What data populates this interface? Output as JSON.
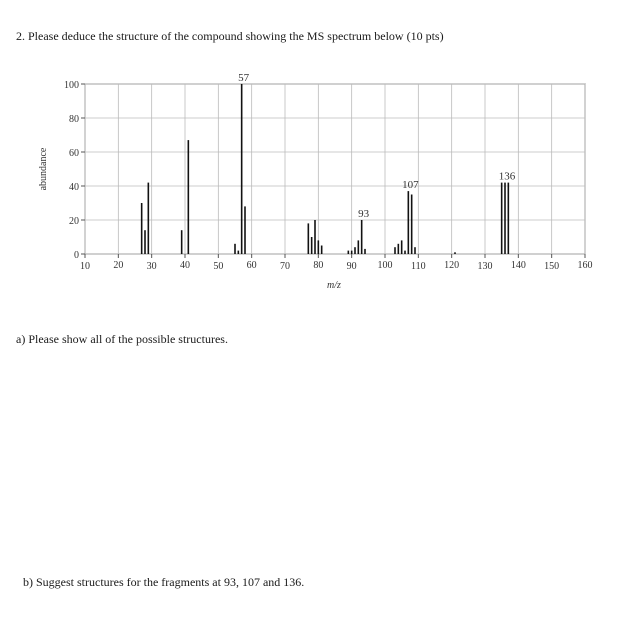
{
  "question": {
    "title": "2. Please deduce the structure of the compound showing the MS spectrum below (10 pts)",
    "part_a": "a) Please show all of the possible structures.",
    "part_b": "b) Suggest structures for the fragments at 93, 107 and 136."
  },
  "chart_data": {
    "type": "bar",
    "xlabel": "m/z",
    "ylabel": "abundance",
    "xlim": [
      10,
      160
    ],
    "ylim": [
      0,
      100
    ],
    "x_ticks": [
      10,
      20,
      30,
      40,
      50,
      60,
      70,
      80,
      90,
      100,
      110,
      120,
      130,
      140,
      150,
      160
    ],
    "y_ticks": [
      0,
      20,
      40,
      60,
      80,
      100
    ],
    "grid": true,
    "peaks": [
      {
        "mz": 27,
        "abundance": 30
      },
      {
        "mz": 28,
        "abundance": 14
      },
      {
        "mz": 29,
        "abundance": 42
      },
      {
        "mz": 39,
        "abundance": 14
      },
      {
        "mz": 41,
        "abundance": 67
      },
      {
        "mz": 55,
        "abundance": 6
      },
      {
        "mz": 56,
        "abundance": 2
      },
      {
        "mz": 57,
        "abundance": 100
      },
      {
        "mz": 58,
        "abundance": 28
      },
      {
        "mz": 77,
        "abundance": 18
      },
      {
        "mz": 78,
        "abundance": 10
      },
      {
        "mz": 79,
        "abundance": 20
      },
      {
        "mz": 80,
        "abundance": 8
      },
      {
        "mz": 81,
        "abundance": 5
      },
      {
        "mz": 89,
        "abundance": 2
      },
      {
        "mz": 90,
        "abundance": 2
      },
      {
        "mz": 91,
        "abundance": 4
      },
      {
        "mz": 92,
        "abundance": 8
      },
      {
        "mz": 93,
        "abundance": 20
      },
      {
        "mz": 94,
        "abundance": 3
      },
      {
        "mz": 103,
        "abundance": 4
      },
      {
        "mz": 104,
        "abundance": 6
      },
      {
        "mz": 105,
        "abundance": 8
      },
      {
        "mz": 106,
        "abundance": 2
      },
      {
        "mz": 107,
        "abundance": 37
      },
      {
        "mz": 108,
        "abundance": 35
      },
      {
        "mz": 109,
        "abundance": 4
      },
      {
        "mz": 121,
        "abundance": 1
      },
      {
        "mz": 135,
        "abundance": 42
      },
      {
        "mz": 136,
        "abundance": 42
      },
      {
        "mz": 137,
        "abundance": 42
      }
    ],
    "annotations": [
      {
        "mz": 57,
        "abundance": 100,
        "text": "57"
      },
      {
        "mz": 93,
        "abundance": 20,
        "text": "93"
      },
      {
        "mz": 107,
        "abundance": 37,
        "text": "107"
      },
      {
        "mz": 136,
        "abundance": 42,
        "text": "136"
      }
    ]
  }
}
